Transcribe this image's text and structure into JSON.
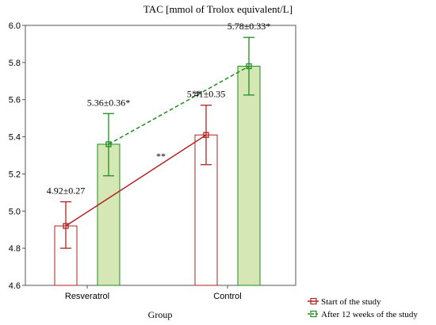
{
  "chart_data": {
    "type": "bar",
    "title": "TAC [mmol of Trolox equivalent/L]",
    "xlabel": "Group",
    "ylabel": "",
    "ylim": [
      4.6,
      6.0
    ],
    "yticks": [
      "4.6",
      "4.8",
      "5.0",
      "5.2",
      "5.4",
      "5.6",
      "5.8",
      "6.0"
    ],
    "categories": [
      "Resveratrol",
      "Control"
    ],
    "series": [
      {
        "name": "Start of the study",
        "color": "#b22222",
        "fill": "#ffffff",
        "values": [
          4.92,
          5.41
        ],
        "error_low": [
          4.8,
          5.25
        ],
        "error_high": [
          5.05,
          5.57
        ],
        "labels": [
          "4.92±0.27",
          "5.41±0.35"
        ],
        "line_style": "solid"
      },
      {
        "name": "After 12 weeks of the study",
        "color": "#1e8c1e",
        "fill": "#d5e7b5",
        "values": [
          5.36,
          5.78
        ],
        "error_low": [
          5.19,
          5.625
        ],
        "error_high": [
          5.525,
          5.935
        ],
        "labels": [
          "5.36±0.36*",
          "5.78±0.33*"
        ],
        "line_style": "dashed"
      }
    ],
    "annotations": [
      {
        "text": "**",
        "x": "Control",
        "y": 5.63,
        "series": "After 12 weeks of the study"
      },
      {
        "text": "**",
        "x": "Resveratrol",
        "y": 5.29,
        "series": "Start of the study"
      }
    ],
    "legend_position": "bottom-right",
    "grid": false
  }
}
